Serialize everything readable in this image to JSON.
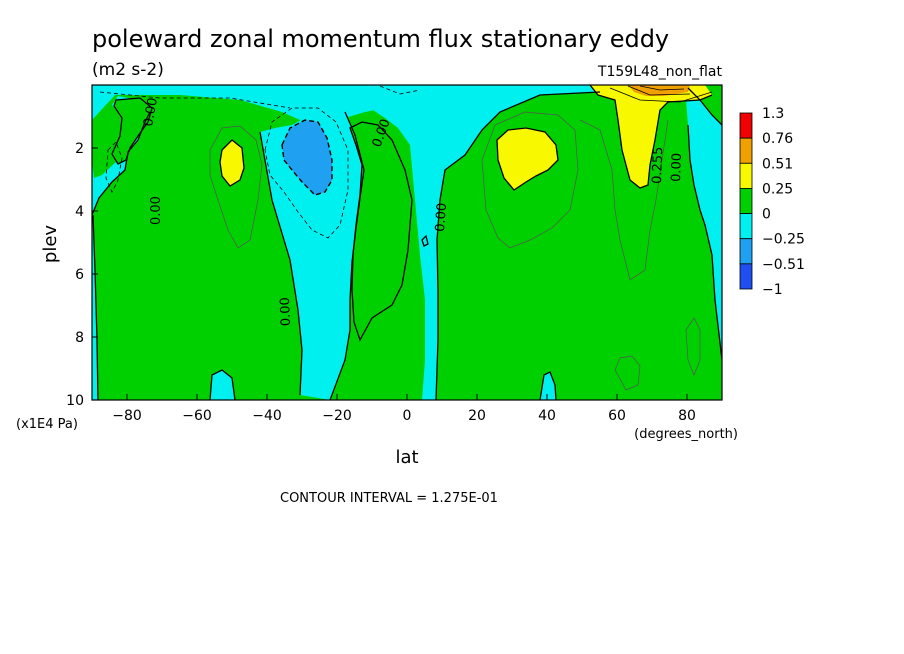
{
  "chart_data": {
    "type": "heatmap",
    "title": "poleward zonal momentum flux stationary eddy",
    "units": "(m2 s-2)",
    "run_label": "T159L48_non_flat",
    "xlabel": "lat",
    "x_units": "(degrees_north)",
    "ylabel": "plev",
    "y_units": "(x1E4 Pa)",
    "xlim": [
      -90,
      90
    ],
    "ylim": [
      10,
      0
    ],
    "x_ticks": [
      "-80",
      "-60",
      "-40",
      "-20",
      "0",
      "20",
      "40",
      "60",
      "80"
    ],
    "y_ticks": [
      "2",
      "4",
      "6",
      "8",
      "10"
    ],
    "contour_interval_label": "CONTOUR INTERVAL = 1.275E-01",
    "colorbar": {
      "levels": [
        "1.3",
        "0.76",
        "0.51",
        "0.25",
        "0",
        "−0.25",
        "−0.51",
        "−1"
      ],
      "colors": [
        "#f00000",
        "#f0a000",
        "#f8f800",
        "#00d000",
        "#00f0f0",
        "#1fa0f0",
        "#1f4ff0"
      ]
    },
    "contour_labels": [
      "0.00",
      "0.00",
      "0.00",
      "0.00",
      "0.00",
      "0.255",
      "0.00"
    ],
    "features": [
      {
        "name": "NH polar jet maximum",
        "lat": 68,
        "plev": 0.3,
        "value": 1.3
      },
      {
        "name": "positive center",
        "lat": 35,
        "plev": 2.5,
        "value": 0.3
      },
      {
        "name": "positive center",
        "lat": -50,
        "plev": 2.5,
        "value": 0.3
      },
      {
        "name": "negative center",
        "lat": -28,
        "plev": 2.3,
        "value": -0.4
      }
    ]
  },
  "colors": {
    "background": "#ffffff",
    "green": "#00d000",
    "cyan": "#00f0f0",
    "yellow": "#f8f800",
    "blue": "#1fa0f0",
    "orange": "#f0a000",
    "red": "#f00000"
  }
}
